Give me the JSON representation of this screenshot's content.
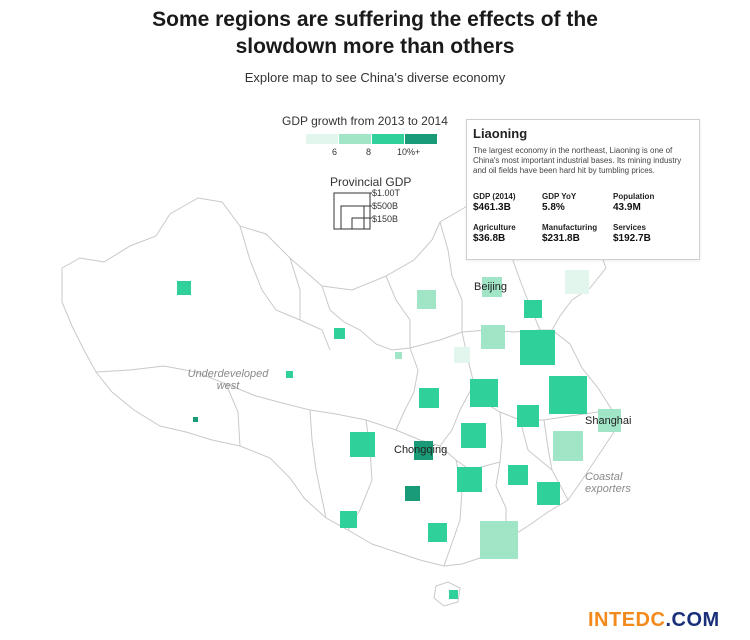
{
  "headline": {
    "line1": "Some regions are suffering the effects of the",
    "line2": "slowdown more than others"
  },
  "subtitle": "Explore map to see China's diverse economy",
  "colors": {
    "level_1": "#e2f6ee",
    "level_2": "#9fe5c6",
    "level_3": "#2fd09a",
    "level_4": "#1a9b77",
    "province_outline": "#c9c9c9",
    "watermark_primary": "#f28a1e",
    "watermark_secondary": "#1a2f7a"
  },
  "legend": {
    "growth_title": "GDP growth from 2013 to 2014",
    "growth_ticks": [
      "6",
      "8",
      "10%+"
    ],
    "gdp_title": "Provincial GDP",
    "gdp_sizes": [
      "$1.00T",
      "$500B",
      "$150B"
    ]
  },
  "info_card": {
    "title": "Liaoning",
    "description": "The largest economy in the northeast, Liaoning is one of China's most important industrial bases. Its mining industry and oil fields have been hard hit by tumbling prices.",
    "stats": [
      {
        "label": "GDP (2014)",
        "value": "$461.3B"
      },
      {
        "label": "GDP YoY",
        "value": "5.8%"
      },
      {
        "label": "Population",
        "value": "43.9M"
      },
      {
        "label": "Agriculture",
        "value": "$36.8B"
      },
      {
        "label": "Manufacturing",
        "value": "$231.8B"
      },
      {
        "label": "Services",
        "value": "$192.7B"
      }
    ]
  },
  "map_labels": {
    "beijing": "Beijing",
    "shanghai": "Shanghai",
    "chongqing": "Chongqing",
    "west_note_1": "Underdeveloped",
    "west_note_2": "west",
    "coast_note_1": "Coastal",
    "coast_note_2": "exporters"
  },
  "watermark": {
    "part1": "INTEDC",
    "part2": ".COM"
  }
}
